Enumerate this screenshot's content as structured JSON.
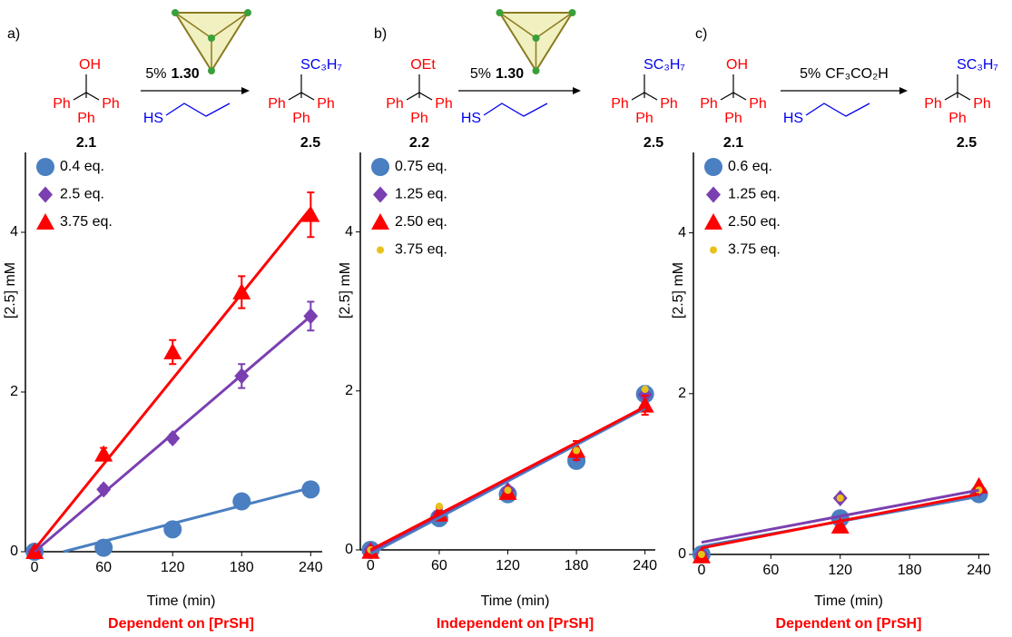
{
  "chart_data": [
    {
      "type": "scatter",
      "panel_label": "a)",
      "xlabel": "Time (min)",
      "ylabel": "[2.5] mM",
      "caption": "Dependent on [PrSH]",
      "xlim": [
        -8,
        250
      ],
      "ylim": [
        0,
        5
      ],
      "xticks": [
        0,
        60,
        120,
        180,
        240
      ],
      "yticks": [
        0,
        2,
        4
      ],
      "scheme": {
        "reactant_group": "OH",
        "reactant_id": "2.1",
        "catalyst_amount": "5%",
        "catalyst": "1.30",
        "catalyst_bold": true,
        "cage": true,
        "thiol": "HS",
        "product_group": "SC₃H₇",
        "product_id": "2.5",
        "phenyl": "Ph"
      },
      "series": [
        {
          "name": "0.4 eq.",
          "color": "#4a7fc1",
          "marker": "circle",
          "x": [
            0,
            60,
            120,
            180,
            240
          ],
          "values": [
            0,
            0.05,
            0.28,
            0.63,
            0.78
          ],
          "fit_x": [
            25,
            240
          ],
          "fit_y": [
            0,
            0.8
          ]
        },
        {
          "name": "2.5 eq.",
          "color": "#7a3fb0",
          "marker": "diamond",
          "x": [
            0,
            60,
            120,
            180,
            240
          ],
          "values": [
            0,
            0.78,
            1.42,
            2.2,
            2.95
          ],
          "errors": [
            0,
            0.05,
            0.05,
            0.15,
            0.18
          ],
          "fit_x": [
            0,
            240
          ],
          "fit_y": [
            0,
            2.95
          ]
        },
        {
          "name": "3.75 eq.",
          "color": "#ff0000",
          "marker": "triangle",
          "x": [
            0,
            60,
            120,
            180,
            240
          ],
          "values": [
            0,
            1.22,
            2.5,
            3.25,
            4.22
          ],
          "errors": [
            0,
            0.08,
            0.15,
            0.2,
            0.28
          ],
          "fit_x": [
            0,
            240
          ],
          "fit_y": [
            0.03,
            4.3
          ]
        }
      ]
    },
    {
      "type": "scatter",
      "panel_label": "b)",
      "xlabel": "Time (min)",
      "ylabel": "[2.5] mM",
      "caption": "Independent on [PrSH]",
      "xlim": [
        -9,
        249
      ],
      "ylim": [
        0,
        5
      ],
      "xticks": [
        0,
        60,
        120,
        180,
        240
      ],
      "yticks": [
        0,
        2,
        4
      ],
      "scheme": {
        "reactant_group": "OEt",
        "reactant_id": "2.2",
        "catalyst_amount": "5%",
        "catalyst": "1.30",
        "catalyst_bold": true,
        "cage": true,
        "thiol": "HS",
        "product_group": "SC₃H₇",
        "product_id": "2.5",
        "phenyl": "Ph"
      },
      "series": [
        {
          "name": "0.75 eq.",
          "color": "#4a7fc1",
          "marker": "circle",
          "x": [
            0,
            60,
            120,
            180,
            240
          ],
          "values": [
            0,
            0.4,
            0.7,
            1.12,
            1.96
          ],
          "errors": [
            0,
            0.05,
            0.05,
            0.08,
            0.1
          ],
          "fit_x": [
            0,
            240
          ],
          "fit_y": [
            -0.05,
            1.78
          ]
        },
        {
          "name": "1.25 eq.",
          "color": "#7a3fb0",
          "marker": "diamond",
          "x": [
            0,
            60,
            120,
            180,
            240
          ],
          "values": [
            0,
            0.45,
            0.75,
            1.2,
            1.95
          ],
          "fit_x": [
            0,
            240
          ],
          "fit_y": [
            -0.02,
            1.8
          ]
        },
        {
          "name": "2.50 eq.",
          "color": "#ff0000",
          "marker": "triangle",
          "x": [
            0,
            60,
            120,
            180,
            240
          ],
          "values": [
            -0.02,
            0.45,
            0.72,
            1.25,
            1.82
          ],
          "errors": [
            0,
            0.08,
            0.05,
            0.12,
            0.12
          ],
          "fit_x": [
            0,
            240
          ],
          "fit_y": [
            0,
            1.8
          ]
        },
        {
          "name": "3.75 eq.",
          "color": "#e8c21a",
          "marker": "dot",
          "x": [
            0,
            60,
            120,
            180,
            240
          ],
          "values": [
            0,
            0.55,
            0.75,
            1.25,
            2.02
          ]
        }
      ]
    },
    {
      "type": "scatter",
      "panel_label": "c)",
      "xlabel": "Time (min)",
      "ylabel": "[2.5] mM",
      "caption": "Dependent on [PrSH]",
      "xlim": [
        -7,
        249
      ],
      "ylim": [
        0,
        5
      ],
      "xticks": [
        0,
        60,
        120,
        180,
        240
      ],
      "yticks": [
        0,
        2,
        4
      ],
      "scheme": {
        "reactant_group": "OH",
        "reactant_id": "2.1",
        "catalyst_amount": "5%",
        "catalyst": "CF₃CO₂H",
        "catalyst_bold": false,
        "cage": false,
        "thiol": "HS",
        "product_group": "SC₃H₇",
        "product_id": "2.5",
        "phenyl": "Ph"
      },
      "series": [
        {
          "name": "0.6 eq.",
          "color": "#4a7fc1",
          "marker": "circle",
          "x": [
            0,
            120,
            240
          ],
          "values": [
            0,
            0.45,
            0.75
          ],
          "fit_x": [
            0,
            240
          ],
          "fit_y": [
            0.1,
            0.72
          ]
        },
        {
          "name": "1.25 eq.",
          "color": "#7a3fb0",
          "marker": "diamond",
          "x": [
            0,
            120,
            240
          ],
          "values": [
            0,
            0.7,
            0.8
          ],
          "fit_x": [
            0,
            240
          ],
          "fit_y": [
            0.15,
            0.8
          ]
        },
        {
          "name": "2.50 eq.",
          "color": "#ff0000",
          "marker": "triangle",
          "x": [
            0,
            120,
            240
          ],
          "values": [
            -0.02,
            0.35,
            0.85
          ],
          "fit_x": [
            0,
            240
          ],
          "fit_y": [
            0.08,
            0.75
          ]
        },
        {
          "name": "3.75 eq.",
          "color": "#e8c21a",
          "marker": "dot",
          "x": [
            0,
            120,
            240
          ],
          "values": [
            0,
            0.7,
            0.8
          ]
        }
      ]
    }
  ]
}
